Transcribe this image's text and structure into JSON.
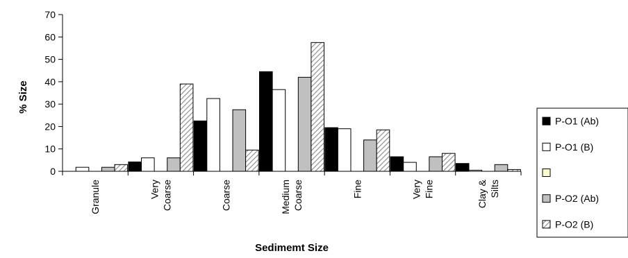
{
  "chart_data": {
    "type": "bar",
    "title": "",
    "xlabel": "Sedimemt Size",
    "ylabel": "% Size",
    "ylim": [
      0,
      70
    ],
    "yticks": [
      0,
      10,
      20,
      30,
      40,
      50,
      60,
      70
    ],
    "grid": false,
    "legend_position": "right",
    "categories": [
      [
        "Granule"
      ],
      [
        "Very",
        "Coarse"
      ],
      [
        "Coarse"
      ],
      [
        "Medium",
        "Coarse"
      ],
      [
        "Fine"
      ],
      [
        "Very",
        "Fine"
      ],
      [
        "Clay &",
        "Silts"
      ]
    ],
    "series": [
      {
        "name": "P-O1 (Ab)",
        "fill": "#000000",
        "pattern": "solid",
        "values": [
          0,
          4.2,
          22.5,
          44.5,
          19.5,
          6.5,
          3.5
        ]
      },
      {
        "name": "P-O1 (B)",
        "fill": "#ffffff",
        "pattern": "solid",
        "values": [
          1.8,
          6.0,
          32.5,
          36.5,
          19.0,
          4.0,
          0.5
        ]
      },
      {
        "name": "",
        "fill": "#ffffcc",
        "pattern": "solid",
        "values": [
          0,
          0,
          0,
          0,
          0,
          0,
          0
        ]
      },
      {
        "name": "P-O2 (Ab)",
        "fill": "#c0c0c0",
        "pattern": "solid",
        "values": [
          1.8,
          6.0,
          27.5,
          42.0,
          14.0,
          6.5,
          3.0
        ]
      },
      {
        "name": "P-O2 (B)",
        "fill": "#ffffff",
        "pattern": "hatch",
        "values": [
          3.0,
          39.0,
          9.5,
          57.5,
          18.5,
          8.0,
          0.8
        ]
      }
    ]
  }
}
